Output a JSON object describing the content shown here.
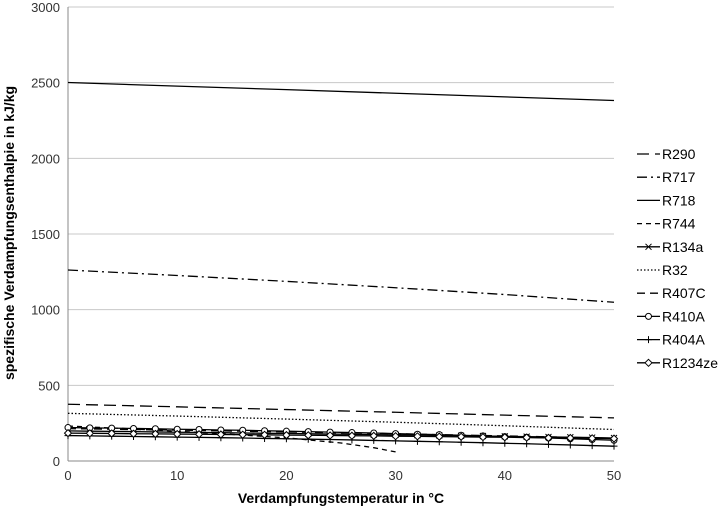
{
  "chart_data": {
    "type": "line",
    "title": "",
    "xlabel": "Verdampfungstemperatur in °C",
    "ylabel": "spezifische Verdampfungsenthalpie in kJ/kg",
    "xlim": [
      0,
      50
    ],
    "ylim": [
      0,
      3000
    ],
    "xticks": [
      0,
      10,
      20,
      30,
      40,
      50
    ],
    "yticks": [
      0,
      500,
      1000,
      1500,
      2000,
      2500,
      3000
    ],
    "xtick_labels": [
      "0",
      "10",
      "20",
      "30",
      "40",
      "50"
    ],
    "ytick_labels": [
      "0",
      "500",
      "1000",
      "1500",
      "2000",
      "2500",
      "3000"
    ],
    "grid": "horizontal",
    "legend_position": "right",
    "series": [
      {
        "name": "R290",
        "style": "longdash",
        "marker": "none",
        "x": [
          0,
          10,
          20,
          30,
          40,
          50
        ],
        "y": [
          375,
          358,
          340,
          322,
          303,
          285
        ]
      },
      {
        "name": "R717",
        "style": "dashdot",
        "marker": "none",
        "x": [
          0,
          10,
          20,
          30,
          40,
          50
        ],
        "y": [
          1262,
          1226,
          1187,
          1145,
          1100,
          1049
        ]
      },
      {
        "name": "R718",
        "style": "solid",
        "marker": "none",
        "x": [
          0,
          10,
          20,
          30,
          40,
          50
        ],
        "y": [
          2501,
          2477,
          2454,
          2430,
          2406,
          2382
        ]
      },
      {
        "name": "R744",
        "style": "shortdash",
        "marker": "none",
        "x": [
          0,
          5,
          10,
          15,
          20,
          25,
          28,
          30
        ],
        "y": [
          231,
          215,
          197,
          176,
          153,
          119,
          88,
          60
        ]
      },
      {
        "name": "R134a",
        "style": "solid",
        "marker": "x",
        "x": [
          0,
          2,
          4,
          6,
          8,
          10,
          12,
          14,
          16,
          18,
          20,
          22,
          24,
          26,
          28,
          30,
          32,
          34,
          36,
          38,
          40,
          42,
          44,
          46,
          48,
          50
        ],
        "y": [
          199,
          197,
          196,
          194,
          192,
          190,
          189,
          187,
          185,
          183,
          182,
          180,
          178,
          176,
          174,
          173,
          171,
          169,
          167,
          165,
          163,
          161,
          159,
          157,
          155,
          152
        ]
      },
      {
        "name": "R32",
        "style": "dotted",
        "marker": "none",
        "x": [
          0,
          10,
          20,
          30,
          40,
          50
        ],
        "y": [
          315,
          297,
          277,
          256,
          233,
          208
        ]
      },
      {
        "name": "R407C",
        "style": "dash",
        "marker": "none",
        "x": [
          0,
          10,
          20,
          30,
          40,
          50
        ],
        "y": [
          214,
          204,
          192,
          180,
          166,
          150
        ]
      },
      {
        "name": "R410A",
        "style": "solid",
        "marker": "circle",
        "x": [
          0,
          2,
          4,
          6,
          8,
          10,
          12,
          14,
          16,
          18,
          20,
          22,
          24,
          26,
          28,
          30,
          32,
          34,
          36,
          38,
          40,
          42,
          44,
          46,
          48,
          50
        ],
        "y": [
          221,
          219,
          217,
          215,
          213,
          210,
          208,
          205,
          203,
          200,
          197,
          194,
          191,
          188,
          185,
          181,
          177,
          174,
          170,
          166,
          161,
          157,
          152,
          147,
          142,
          137
        ]
      },
      {
        "name": "R404A",
        "style": "solid",
        "marker": "plus",
        "x": [
          0,
          2,
          4,
          6,
          8,
          10,
          12,
          14,
          16,
          18,
          20,
          22,
          24,
          26,
          28,
          30,
          32,
          34,
          36,
          38,
          40,
          42,
          44,
          46,
          48,
          50
        ],
        "y": [
          168,
          166,
          164,
          162,
          160,
          158,
          156,
          154,
          152,
          149,
          147,
          144,
          142,
          139,
          136,
          133,
          130,
          127,
          124,
          121,
          117,
          114,
          110,
          106,
          102,
          98
        ]
      },
      {
        "name": "R1234ze",
        "style": "solid",
        "marker": "diamond",
        "x": [
          0,
          2,
          4,
          6,
          8,
          10,
          12,
          14,
          16,
          18,
          20,
          22,
          24,
          26,
          28,
          30,
          32,
          34,
          36,
          38,
          40,
          42,
          44,
          46,
          48,
          50
        ],
        "y": [
          184,
          183,
          182,
          180,
          179,
          178,
          177,
          175,
          174,
          173,
          171,
          170,
          169,
          167,
          166,
          164,
          163,
          161,
          160,
          158,
          157,
          155,
          153,
          152,
          150,
          148
        ]
      }
    ]
  }
}
